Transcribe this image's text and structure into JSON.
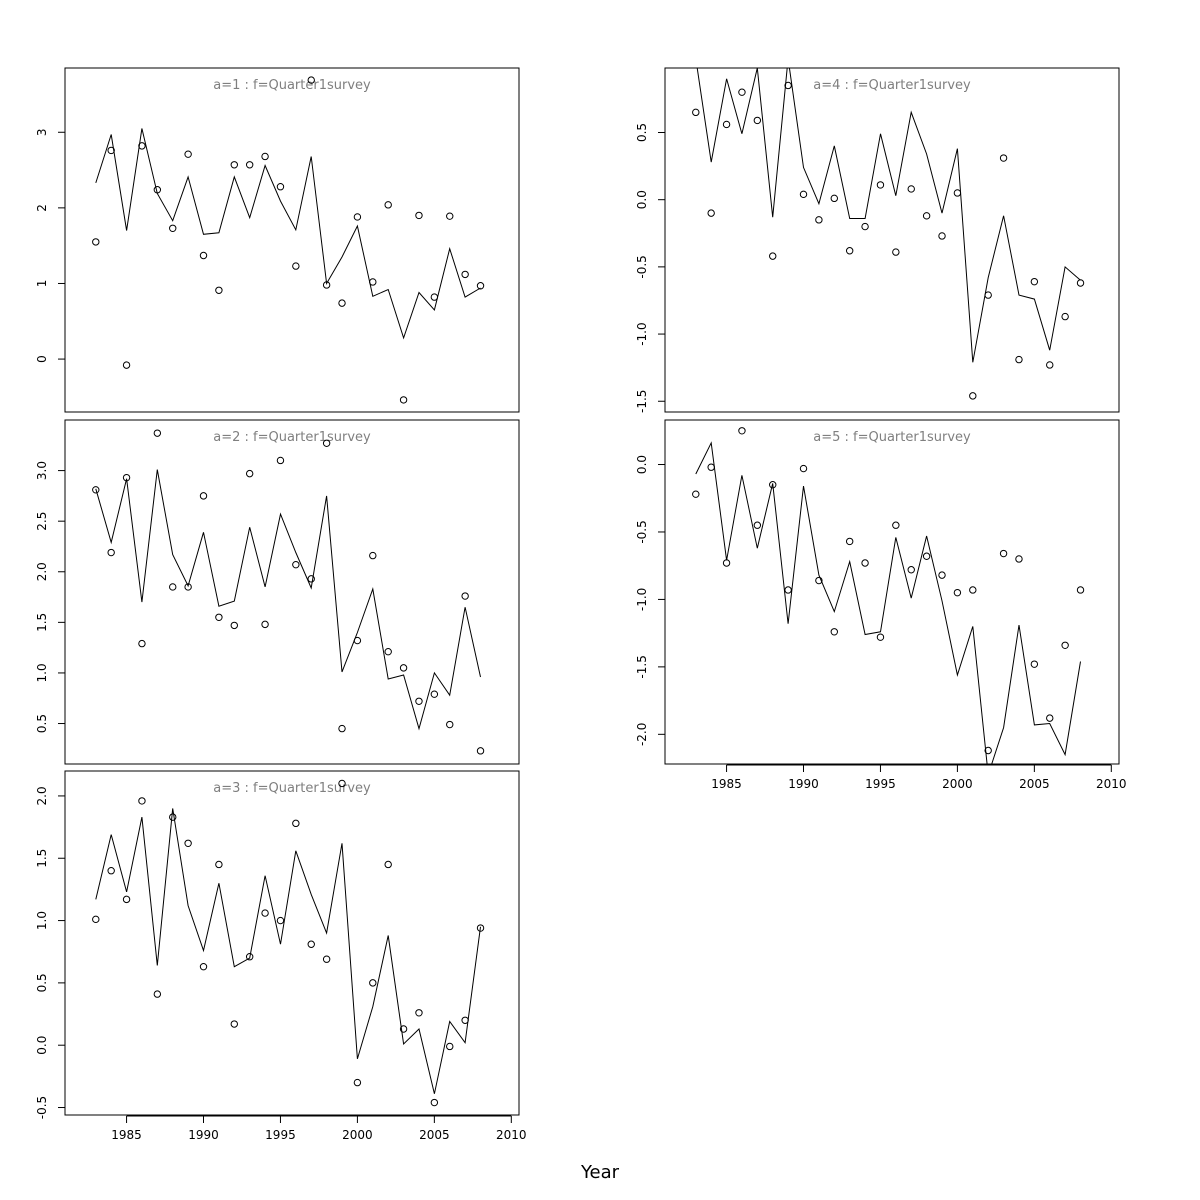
{
  "xlabel": "Year",
  "chart_data": [
    {
      "type": "line",
      "title": "a=1  :  f=Quarter1survey",
      "x": [
        1983,
        1984,
        1985,
        1986,
        1987,
        1988,
        1989,
        1990,
        1991,
        1992,
        1993,
        1994,
        1995,
        1996,
        1997,
        1998,
        1999,
        2000,
        2001,
        2002,
        2003,
        2004,
        2005,
        2006,
        2007,
        2008
      ],
      "xlim": [
        1981,
        2010.5
      ],
      "ylim": [
        -0.7,
        3.85
      ],
      "yticks": [
        0,
        1,
        2,
        3
      ],
      "ytick_labels": [
        "0",
        "1",
        "2",
        "3"
      ],
      "x_axis_shown": false,
      "series": [
        {
          "style": "line",
          "values": [
            2.33,
            2.97,
            1.7,
            3.05,
            2.19,
            1.83,
            2.41,
            1.65,
            1.67,
            2.41,
            1.87,
            2.56,
            2.09,
            1.71,
            2.68,
            1.0,
            1.35,
            1.76,
            0.83,
            0.92,
            0.28,
            0.88,
            0.65,
            1.46,
            0.82,
            0.94
          ]
        },
        {
          "style": "points",
          "values": [
            1.55,
            2.76,
            -0.08,
            2.82,
            2.24,
            1.73,
            2.71,
            1.37,
            0.91,
            2.57,
            2.57,
            2.68,
            2.28,
            1.23,
            3.69,
            0.98,
            0.74,
            1.88,
            1.02,
            2.04,
            -0.54,
            1.9,
            0.82,
            1.89,
            1.12,
            0.97
          ]
        }
      ]
    },
    {
      "type": "line",
      "title": "a=2  :  f=Quarter1survey",
      "x": [
        1983,
        1984,
        1985,
        1986,
        1987,
        1988,
        1989,
        1990,
        1991,
        1992,
        1993,
        1994,
        1995,
        1996,
        1997,
        1998,
        1999,
        2000,
        2001,
        2002,
        2003,
        2004,
        2005,
        2006,
        2007,
        2008
      ],
      "xlim": [
        1981,
        2010.5
      ],
      "ylim": [
        0.1,
        3.5
      ],
      "yticks": [
        0.5,
        1.0,
        1.5,
        2.0,
        2.5,
        3.0
      ],
      "ytick_labels": [
        "0.5",
        "1.0",
        "1.5",
        "2.0",
        "2.5",
        "3.0"
      ],
      "x_axis_shown": false,
      "series": [
        {
          "style": "line",
          "values": [
            2.82,
            2.29,
            2.92,
            1.7,
            3.01,
            2.17,
            1.86,
            2.39,
            1.66,
            1.71,
            2.44,
            1.85,
            2.57,
            2.19,
            1.84,
            2.75,
            1.01,
            1.4,
            1.83,
            0.94,
            0.98,
            0.45,
            1.0,
            0.78,
            1.65,
            0.96
          ]
        },
        {
          "style": "points",
          "values": [
            2.81,
            2.19,
            2.93,
            1.29,
            3.37,
            1.85,
            1.85,
            2.75,
            1.55,
            1.47,
            2.97,
            1.48,
            3.1,
            2.07,
            1.93,
            3.27,
            0.45,
            1.32,
            2.16,
            1.21,
            1.05,
            0.72,
            0.79,
            0.49,
            1.76,
            0.23
          ]
        }
      ]
    },
    {
      "type": "line",
      "title": "a=3  :  f=Quarter1survey",
      "x": [
        1983,
        1984,
        1985,
        1986,
        1987,
        1988,
        1989,
        1990,
        1991,
        1992,
        1993,
        1994,
        1995,
        1996,
        1997,
        1998,
        1999,
        2000,
        2001,
        2002,
        2003,
        2004,
        2005,
        2006,
        2007,
        2008
      ],
      "xlim": [
        1981,
        2010.5
      ],
      "xticks": [
        1985,
        1990,
        1995,
        2000,
        2005,
        2010
      ],
      "xtick_labels": [
        "1985",
        "1990",
        "1995",
        "2000",
        "2005",
        "2010"
      ],
      "ylim": [
        -0.56,
        2.2
      ],
      "yticks": [
        -0.5,
        0.0,
        0.5,
        1.0,
        1.5,
        2.0
      ],
      "ytick_labels": [
        "-0.5",
        "0.0",
        "0.5",
        "1.0",
        "1.5",
        "2.0"
      ],
      "x_axis_shown": true,
      "series": [
        {
          "style": "line",
          "values": [
            1.17,
            1.69,
            1.23,
            1.83,
            0.64,
            1.9,
            1.12,
            0.76,
            1.3,
            0.63,
            0.7,
            1.36,
            0.81,
            1.56,
            1.21,
            0.9,
            1.62,
            -0.11,
            0.31,
            0.88,
            0.01,
            0.13,
            -0.39,
            0.19,
            0.02,
            0.95
          ]
        },
        {
          "style": "points",
          "values": [
            1.01,
            1.4,
            1.17,
            1.96,
            0.41,
            1.83,
            1.62,
            0.63,
            1.45,
            0.17,
            0.71,
            1.06,
            1.0,
            1.78,
            0.81,
            0.69,
            2.1,
            -0.3,
            0.5,
            1.45,
            0.13,
            0.26,
            -0.46,
            -0.01,
            0.2,
            0.94
          ]
        }
      ]
    },
    {
      "type": "line",
      "title": "a=4  :  f=Quarter1survey",
      "x": [
        1983,
        1984,
        1985,
        1986,
        1987,
        1988,
        1989,
        1990,
        1991,
        1992,
        1993,
        1994,
        1995,
        1996,
        1997,
        1998,
        1999,
        2000,
        2001,
        2002,
        2003,
        2004,
        2005,
        2006,
        2007,
        2008
      ],
      "xlim": [
        1981,
        2010.5
      ],
      "ylim": [
        -1.58,
        0.98
      ],
      "yticks": [
        -1.5,
        -1.0,
        -0.5,
        0.0,
        0.5
      ],
      "ytick_labels": [
        "-1.5",
        "-1.0",
        "-0.5",
        "0.0",
        "0.5"
      ],
      "x_axis_shown": false,
      "series": [
        {
          "style": "line",
          "values": [
            1.05,
            0.28,
            0.9,
            0.49,
            0.98,
            -0.13,
            1.05,
            0.24,
            -0.03,
            0.4,
            -0.14,
            -0.14,
            0.49,
            0.03,
            0.65,
            0.34,
            -0.1,
            0.38,
            -1.21,
            -0.58,
            -0.12,
            -0.71,
            -0.74,
            -1.12,
            -0.5,
            -0.6
          ]
        },
        {
          "style": "points",
          "values": [
            0.65,
            -0.1,
            0.56,
            0.8,
            0.59,
            -0.42,
            0.85,
            0.04,
            -0.15,
            0.01,
            -0.38,
            -0.2,
            0.11,
            -0.39,
            0.08,
            -0.12,
            -0.27,
            0.05,
            -1.46,
            -0.71,
            0.31,
            -1.19,
            -0.61,
            -1.23,
            -0.87,
            -0.62
          ]
        }
      ]
    },
    {
      "type": "line",
      "title": "a=5  :  f=Quarter1survey",
      "x": [
        1983,
        1984,
        1985,
        1986,
        1987,
        1988,
        1989,
        1990,
        1991,
        1992,
        1993,
        1994,
        1995,
        1996,
        1997,
        1998,
        1999,
        2000,
        2001,
        2002,
        2003,
        2004,
        2005,
        2006,
        2007,
        2008
      ],
      "xlim": [
        1981,
        2010.5
      ],
      "xticks": [
        1985,
        1990,
        1995,
        2000,
        2005,
        2010
      ],
      "xtick_labels": [
        "1985",
        "1990",
        "1995",
        "2000",
        "2005",
        "2010"
      ],
      "ylim": [
        -2.22,
        0.33
      ],
      "yticks": [
        -2.0,
        -1.5,
        -1.0,
        -0.5,
        0.0
      ],
      "ytick_labels": [
        "-2.0",
        "-1.5",
        "-1.0",
        "-0.5",
        "0.0"
      ],
      "x_axis_shown": true,
      "series": [
        {
          "style": "line",
          "values": [
            -0.07,
            0.16,
            -0.71,
            -0.08,
            -0.62,
            -0.14,
            -1.18,
            -0.16,
            -0.82,
            -1.09,
            -0.72,
            -1.26,
            -1.24,
            -0.54,
            -0.99,
            -0.53,
            -1.01,
            -1.56,
            -1.2,
            -2.3,
            -1.95,
            -1.19,
            -1.93,
            -1.92,
            -2.15,
            -1.46
          ]
        },
        {
          "style": "points",
          "values": [
            -0.22,
            -0.02,
            -0.73,
            0.25,
            -0.45,
            -0.15,
            -0.93,
            -0.03,
            -0.86,
            -1.24,
            -0.57,
            -0.73,
            -1.28,
            -0.45,
            -0.78,
            -0.68,
            -0.82,
            -0.95,
            -0.93,
            -2.12,
            -0.66,
            -0.7,
            -1.48,
            -1.88,
            -1.34,
            -0.93
          ]
        }
      ]
    }
  ]
}
